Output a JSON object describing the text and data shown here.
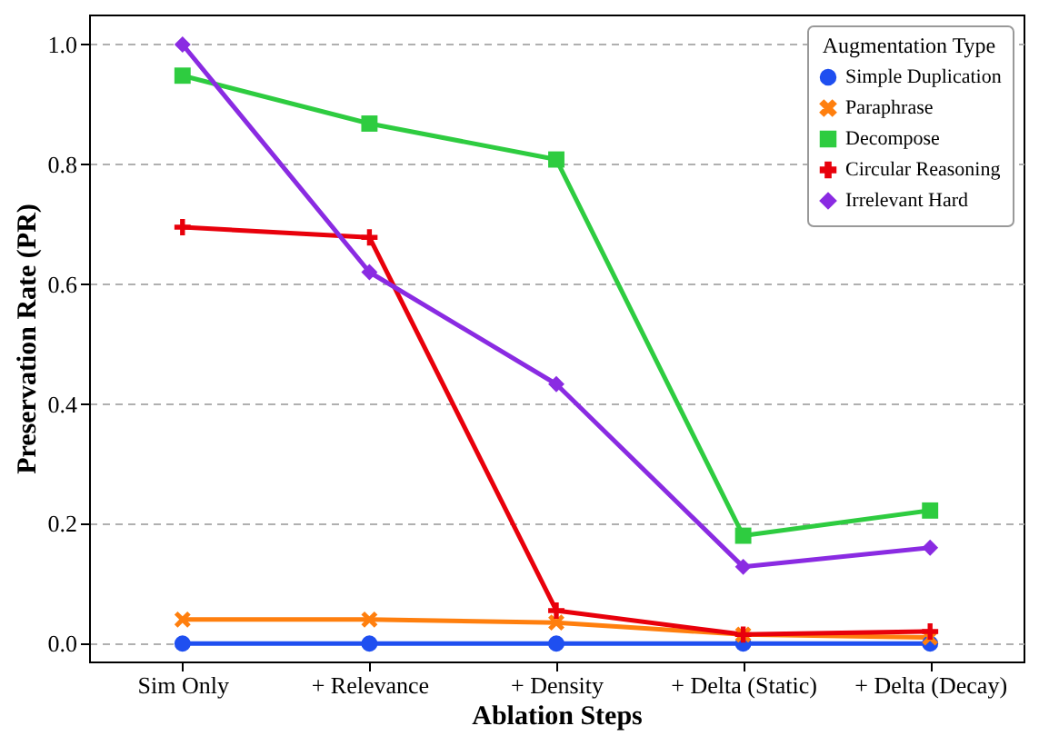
{
  "chart_data": {
    "type": "line",
    "xlabel": "Ablation Steps",
    "ylabel": "Preservation Rate (PR)",
    "legend_title": "Augmentation Type",
    "categories": [
      "Sim Only",
      "+ Relevance",
      "+ Density",
      "+ Delta (Static)",
      "+ Delta (Decay)"
    ],
    "series": [
      {
        "name": "Simple Duplication",
        "color": "#1f4ff0",
        "marker": "circle",
        "values": [
          0,
          0,
          0,
          0,
          0
        ]
      },
      {
        "name": "Paraphrase",
        "color": "#ff7f0e",
        "marker": "x",
        "values": [
          0.04,
          0.04,
          0.035,
          0.015,
          0.01
        ]
      },
      {
        "name": "Decompose",
        "color": "#2ecc40",
        "marker": "square",
        "values": [
          0.948,
          0.868,
          0.808,
          0.18,
          0.222
        ]
      },
      {
        "name": "Circular Reasoning",
        "color": "#e8000b",
        "marker": "cross",
        "values": [
          0.695,
          0.678,
          0.055,
          0.015,
          0.02
        ]
      },
      {
        "name": "Irrelevant Hard",
        "color": "#8a2be2",
        "marker": "diamond",
        "values": [
          1.0,
          0.62,
          0.433,
          0.128,
          0.16
        ]
      }
    ],
    "ylim": [
      -0.03,
      1.05
    ],
    "yticks": [
      {
        "value": 0,
        "label": "0.0"
      },
      {
        "value": 0.2,
        "label": "0.2"
      },
      {
        "value": 0.4,
        "label": "0.4"
      },
      {
        "value": 0.6,
        "label": "0.6"
      },
      {
        "value": 0.8,
        "label": "0.8"
      },
      {
        "value": 1,
        "label": "1.0"
      }
    ],
    "grid": "y",
    "legend": "top right",
    "line_style": "solid"
  }
}
